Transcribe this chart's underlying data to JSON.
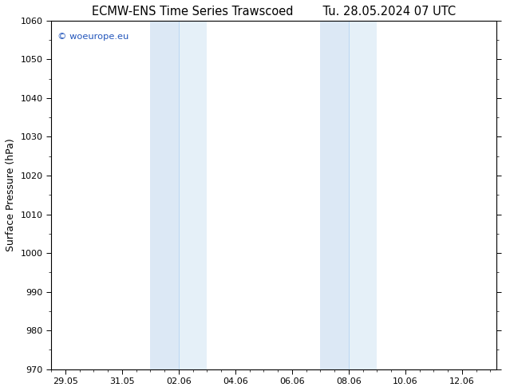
{
  "title": "ECMW-ENS Time Series Trawscoed        Tu. 28.05.2024 07 UTC",
  "ylabel": "Surface Pressure (hPa)",
  "ylim": [
    970,
    1060
  ],
  "yticks": [
    970,
    980,
    990,
    1000,
    1010,
    1020,
    1030,
    1040,
    1050,
    1060
  ],
  "xtick_labels": [
    "29.05",
    "31.05",
    "02.06",
    "04.06",
    "06.06",
    "08.06",
    "10.06",
    "12.06"
  ],
  "xtick_positions": [
    0,
    2,
    4,
    6,
    8,
    10,
    12,
    14
  ],
  "xlim": [
    -0.5,
    15.2
  ],
  "background_color": "#ffffff",
  "plot_bg_color": "#ffffff",
  "shaded_bands": [
    {
      "x_start": 3.0,
      "x_end": 4.0,
      "color": "#dce8f5"
    },
    {
      "x_start": 4.0,
      "x_end": 5.0,
      "color": "#e5f0f8"
    },
    {
      "x_start": 9.0,
      "x_end": 10.0,
      "color": "#dce8f5"
    },
    {
      "x_start": 10.0,
      "x_end": 11.0,
      "color": "#e5f0f8"
    }
  ],
  "watermark_text": "© woeurope.eu",
  "watermark_color": "#2255bb",
  "title_fontsize": 10.5,
  "tick_fontsize": 8,
  "ylabel_fontsize": 9
}
